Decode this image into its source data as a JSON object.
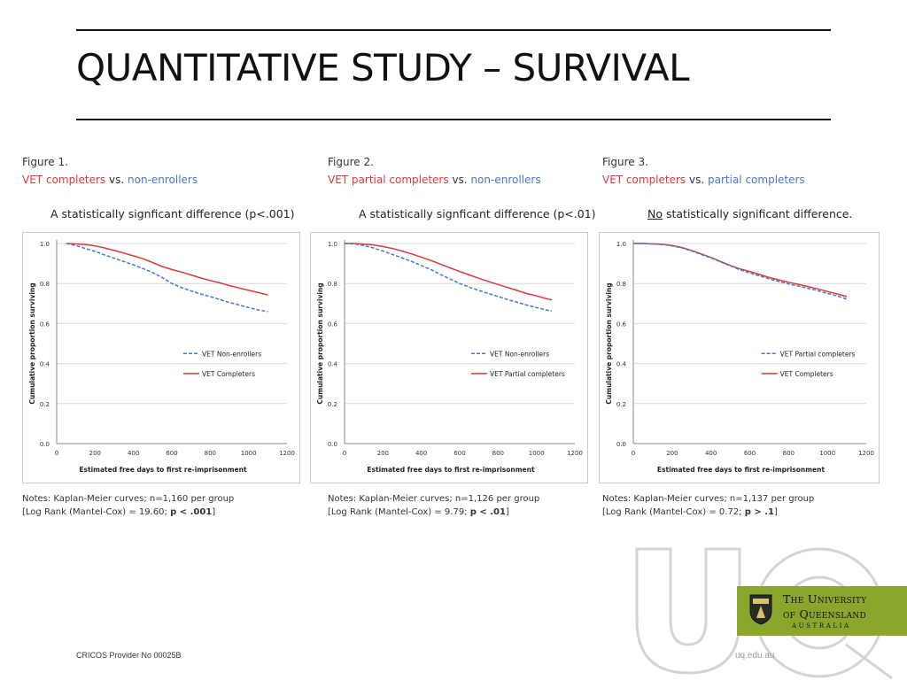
{
  "page": {
    "title": "QUANTITATIVE STUDY – SURVIVAL",
    "footer_left": "CRICOS Provider No 00025B",
    "footer_right": "uq.edu.au",
    "logo": {
      "line1": "The University",
      "line2": "of Queensland",
      "line3": "AUSTRALIA",
      "accent": "#8aa62c",
      "icon": "uq-crest-icon"
    }
  },
  "colors": {
    "red": "#d63b3b",
    "blue": "#4a78c4"
  },
  "chart_data": [
    {
      "type": "line",
      "figure_label": "Figure 1.",
      "subtitle_a": "VET completers",
      "subtitle_vs": "vs.",
      "subtitle_b": "non-enrollers",
      "significance_pre": "",
      "significance_u": "",
      "significance_post": "A statistically signficant difference (p<.001)",
      "xlabel": "Estimated free days to first re-imprisonment",
      "ylabel": "Cumulative proportion surviving",
      "xlim": [
        0,
        1200
      ],
      "ylim": [
        0,
        1.0
      ],
      "xticks": [
        "0",
        "200",
        "400",
        "600",
        "800",
        "1000",
        "1200"
      ],
      "yticks": [
        "0.0",
        "0.2",
        "0.4",
        "0.6",
        "0.8",
        "1.0"
      ],
      "grid": true,
      "legend_position": "center-right",
      "series": [
        {
          "name": "VET Completers",
          "style": "solid",
          "color": "#d63b3b",
          "x": [
            50,
            100,
            150,
            200,
            250,
            300,
            350,
            400,
            450,
            500,
            550,
            600,
            650,
            700,
            750,
            800,
            850,
            900,
            950,
            1000,
            1050,
            1100
          ],
          "y": [
            1.0,
            0.998,
            0.995,
            0.988,
            0.978,
            0.965,
            0.952,
            0.938,
            0.924,
            0.905,
            0.885,
            0.87,
            0.857,
            0.843,
            0.828,
            0.815,
            0.803,
            0.79,
            0.778,
            0.766,
            0.755,
            0.743
          ]
        },
        {
          "name": "VET Non-enrollers",
          "style": "dashed",
          "color": "#4a78c4",
          "x": [
            50,
            100,
            150,
            200,
            250,
            300,
            350,
            400,
            450,
            500,
            550,
            600,
            650,
            700,
            750,
            800,
            850,
            900,
            950,
            1000,
            1050,
            1100
          ],
          "y": [
            1.0,
            0.99,
            0.975,
            0.96,
            0.943,
            0.926,
            0.91,
            0.893,
            0.875,
            0.855,
            0.83,
            0.8,
            0.78,
            0.763,
            0.748,
            0.735,
            0.72,
            0.705,
            0.693,
            0.68,
            0.668,
            0.66
          ]
        }
      ],
      "notes_line1": "Notes: Kaplan-Meier curves; n=1,160 per group",
      "notes_stat": "[Log Rank (Mantel-Cox) = 19.60;",
      "notes_p": "p < .001",
      "notes_end": "]"
    },
    {
      "type": "line",
      "figure_label": "Figure 2.",
      "subtitle_a": "VET partial completers",
      "subtitle_vs": "vs.",
      "subtitle_b": "non-enrollers",
      "significance_pre": "",
      "significance_u": "",
      "significance_post": "A statistically signficant difference (p<.01)",
      "xlabel": "Estimated free days to first re-imprisonment",
      "ylabel": "Cumulative proportion surviving",
      "xlim": [
        0,
        1200
      ],
      "ylim": [
        0,
        1.0
      ],
      "xticks": [
        "0",
        "200",
        "400",
        "600",
        "800",
        "1000",
        "1200"
      ],
      "yticks": [
        "0.0",
        "0.2",
        "0.4",
        "0.6",
        "0.8",
        "1.0"
      ],
      "grid": true,
      "legend_position": "center-right",
      "series": [
        {
          "name": "VET Partial completers",
          "style": "solid",
          "color": "#d63b3b",
          "x": [
            0,
            50,
            100,
            150,
            200,
            250,
            300,
            350,
            400,
            450,
            500,
            550,
            600,
            650,
            700,
            750,
            800,
            850,
            900,
            950,
            1000,
            1050,
            1080
          ],
          "y": [
            1.0,
            1.0,
            0.997,
            0.993,
            0.985,
            0.975,
            0.962,
            0.948,
            0.932,
            0.915,
            0.897,
            0.878,
            0.86,
            0.843,
            0.826,
            0.81,
            0.795,
            0.78,
            0.765,
            0.75,
            0.738,
            0.725,
            0.718
          ]
        },
        {
          "name": "VET Non-enrollers",
          "style": "dashed",
          "color": "#4a78c4",
          "x": [
            0,
            50,
            100,
            150,
            200,
            250,
            300,
            350,
            400,
            450,
            500,
            550,
            600,
            650,
            700,
            750,
            800,
            850,
            900,
            950,
            1000,
            1050,
            1080
          ],
          "y": [
            1.0,
            0.998,
            0.99,
            0.978,
            0.962,
            0.945,
            0.928,
            0.91,
            0.89,
            0.87,
            0.845,
            0.822,
            0.8,
            0.782,
            0.765,
            0.75,
            0.735,
            0.72,
            0.706,
            0.692,
            0.68,
            0.668,
            0.662
          ]
        }
      ],
      "notes_line1": "Notes: Kaplan-Meier curves; n=1,126 per group",
      "notes_stat": "[Log Rank (Mantel-Cox) = 9.79;",
      "notes_p": "p < .01",
      "notes_end": "]"
    },
    {
      "type": "line",
      "figure_label": "Figure 3.",
      "subtitle_a": "VET completers",
      "subtitle_vs": "vs.",
      "subtitle_b": "partial completers",
      "significance_pre": "",
      "significance_u": "No",
      "significance_post": " statistically significant difference.",
      "xlabel": "Estimated free days to first re-imprisonment",
      "ylabel": "Cumulative proportion surviving",
      "xlim": [
        0,
        1200
      ],
      "ylim": [
        0,
        1.0
      ],
      "xticks": [
        "0",
        "200",
        "400",
        "600",
        "800",
        "1000",
        "1200"
      ],
      "yticks": [
        "0.0",
        "0.2",
        "0.4",
        "0.6",
        "0.8",
        "1.0"
      ],
      "grid": true,
      "legend_position": "center-right",
      "series": [
        {
          "name": "VET Completers",
          "style": "solid",
          "color": "#d63b3b",
          "x": [
            0,
            50,
            100,
            150,
            200,
            250,
            300,
            350,
            400,
            450,
            500,
            550,
            600,
            650,
            700,
            750,
            800,
            850,
            900,
            950,
            1000,
            1050,
            1100
          ],
          "y": [
            1.0,
            1.0,
            0.998,
            0.996,
            0.99,
            0.98,
            0.965,
            0.948,
            0.93,
            0.91,
            0.89,
            0.873,
            0.86,
            0.845,
            0.83,
            0.818,
            0.806,
            0.796,
            0.785,
            0.773,
            0.76,
            0.748,
            0.735
          ]
        },
        {
          "name": "VET Partial completers",
          "style": "dashed",
          "color": "#4a78c4",
          "x": [
            0,
            50,
            100,
            150,
            200,
            250,
            300,
            350,
            400,
            450,
            500,
            550,
            600,
            650,
            700,
            750,
            800,
            850,
            900,
            950,
            1000,
            1050,
            1100
          ],
          "y": [
            1.0,
            1.0,
            0.998,
            0.995,
            0.988,
            0.978,
            0.963,
            0.945,
            0.928,
            0.908,
            0.888,
            0.868,
            0.852,
            0.838,
            0.823,
            0.81,
            0.798,
            0.787,
            0.776,
            0.764,
            0.751,
            0.738,
            0.722
          ]
        }
      ],
      "notes_line1": "Notes: Kaplan-Meier curves; n=1,137 per group",
      "notes_stat": "[Log Rank (Mantel-Cox) = 0.72;",
      "notes_p": "p > .1",
      "notes_end": "]"
    }
  ]
}
